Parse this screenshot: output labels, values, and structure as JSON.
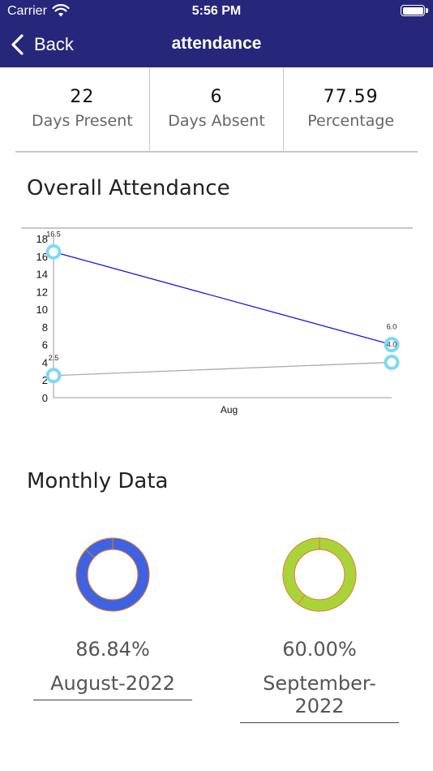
{
  "status": {
    "carrier": "Carrier",
    "time": "5:56 PM"
  },
  "nav": {
    "back_label": "Back",
    "title": "attendance"
  },
  "stats": [
    {
      "value": "22",
      "label": "Days Present"
    },
    {
      "value": "6",
      "label": "Days Absent"
    },
    {
      "value": "77.59",
      "label": "Percentage"
    }
  ],
  "overall": {
    "title": "Overall Attendance"
  },
  "chart_data": {
    "type": "line",
    "title": "",
    "xlabel": "",
    "ylabel": "",
    "x_tick_label": "Aug",
    "ylim": [
      0,
      18
    ],
    "y_ticks": [
      "0",
      "2",
      "4",
      "6",
      "8",
      "10",
      "12",
      "14",
      "16",
      "18"
    ],
    "series": [
      {
        "color": "#1a1adf",
        "values": [
          16.5,
          6.0
        ],
        "labels": [
          "16.5",
          "6.0"
        ]
      },
      {
        "color": "#aaaaaa",
        "values": [
          2.5,
          4.0
        ],
        "labels": [
          "2.5",
          "4.0"
        ]
      }
    ],
    "marker_color": "#7fd8f5",
    "grid": false
  },
  "monthly": {
    "title": "Monthly Data",
    "months": [
      {
        "percent": "86.84%",
        "name": "August-2022",
        "fill": 0.8684,
        "color": "#3f63e0",
        "rim": "#e8782f"
      },
      {
        "percent": "60.00%",
        "name": "September-2022",
        "fill": 0.6,
        "color": "#a8d43a",
        "rim": "#e8782f"
      }
    ]
  }
}
